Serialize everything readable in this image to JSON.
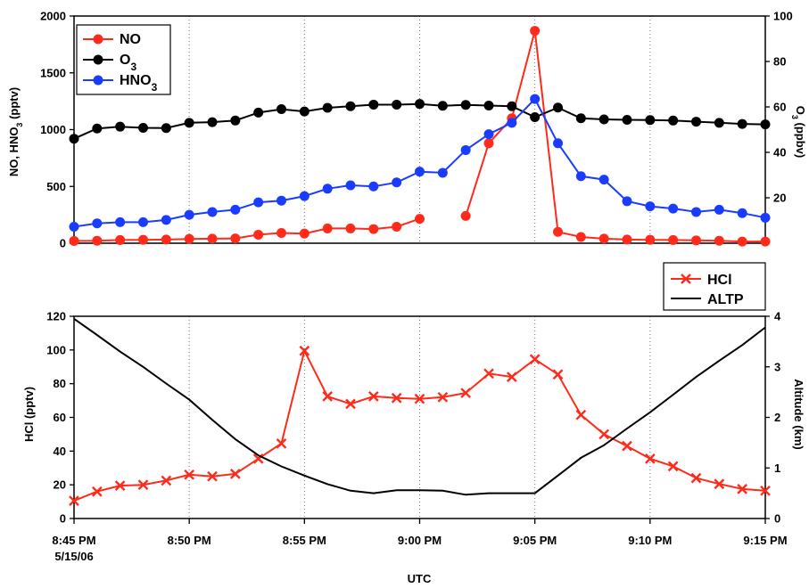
{
  "chart_data": [
    {
      "type": "line",
      "x": [
        "8:45 PM",
        "8:46 PM",
        "8:47 PM",
        "8:48 PM",
        "8:49 PM",
        "8:50 PM",
        "8:51 PM",
        "8:52 PM",
        "8:53 PM",
        "8:54 PM",
        "8:55 PM",
        "8:56 PM",
        "8:57 PM",
        "8:58 PM",
        "8:59 PM",
        "9:00 PM",
        "9:01 PM",
        "9:02 PM",
        "9:03 PM",
        "9:04 PM",
        "9:05 PM",
        "9:06 PM",
        "9:07 PM",
        "9:08 PM",
        "9:09 PM",
        "9:10 PM",
        "9:11 PM",
        "9:12 PM",
        "9:13 PM",
        "9:14 PM",
        "9:15 PM"
      ],
      "ylabel": "NO, HNO3 (pptv)",
      "y2label": "O3 (ppbv)",
      "ylim": [
        0,
        2000
      ],
      "y2lim": [
        0,
        100
      ],
      "yticks": [
        "0",
        "500",
        "1000",
        "1500",
        "2000"
      ],
      "y2ticks": [
        "20",
        "40",
        "60",
        "80",
        "100"
      ],
      "grid": "vertical dotted",
      "legend_position": "top-left",
      "series": [
        {
          "name": "NO",
          "axis": "left",
          "color": "#ff2a1a",
          "marker": "circle",
          "values": [
            20,
            22,
            28,
            30,
            32,
            38,
            40,
            42,
            75,
            90,
            85,
            130,
            130,
            125,
            145,
            215,
            null,
            240,
            880,
            1100,
            1870,
            100,
            55,
            40,
            32,
            30,
            28,
            25,
            22,
            15,
            15
          ]
        },
        {
          "name": "O3",
          "axis": "right",
          "color": "#000000",
          "marker": "circle",
          "values": [
            46,
            50.5,
            51.3,
            50.8,
            50.7,
            53,
            53.3,
            54,
            57.5,
            59,
            58,
            59.6,
            60.3,
            61,
            61,
            61.3,
            60.5,
            60.9,
            60.6,
            60.3,
            55.5,
            59.7,
            55,
            54.5,
            54.3,
            54.2,
            54,
            53.5,
            53,
            52.5,
            52.3
          ]
        },
        {
          "name": "HNO3",
          "axis": "left",
          "color": "#1a3cff",
          "marker": "circle",
          "values": [
            145,
            175,
            185,
            185,
            205,
            250,
            275,
            295,
            360,
            375,
            415,
            480,
            510,
            500,
            535,
            630,
            620,
            820,
            960,
            1060,
            1270,
            880,
            590,
            560,
            370,
            325,
            305,
            275,
            295,
            265,
            225
          ]
        }
      ]
    },
    {
      "type": "line",
      "x": [
        "8:45 PM",
        "8:46 PM",
        "8:47 PM",
        "8:48 PM",
        "8:49 PM",
        "8:50 PM",
        "8:51 PM",
        "8:52 PM",
        "8:53 PM",
        "8:54 PM",
        "8:55 PM",
        "8:56 PM",
        "8:57 PM",
        "8:58 PM",
        "8:59 PM",
        "9:00 PM",
        "9:01 PM",
        "9:02 PM",
        "9:03 PM",
        "9:04 PM",
        "9:05 PM",
        "9:06 PM",
        "9:07 PM",
        "9:08 PM",
        "9:09 PM",
        "9:10 PM",
        "9:11 PM",
        "9:12 PM",
        "9:13 PM",
        "9:14 PM",
        "9:15 PM"
      ],
      "xticks": [
        "8:45 PM",
        "8:50 PM",
        "8:55 PM",
        "9:00 PM",
        "9:05 PM",
        "9:10 PM",
        "9:15 PM"
      ],
      "xtick_sublabel": "5/15/06",
      "xlabel": "UTC",
      "ylabel": "HCl (pptv)",
      "y2label": "Altitude (km)",
      "ylim": [
        0,
        120
      ],
      "y2lim": [
        0,
        4
      ],
      "yticks": [
        "0",
        "20",
        "40",
        "60",
        "80",
        "100",
        "120"
      ],
      "y2ticks": [
        "0",
        "1",
        "2",
        "3",
        "4"
      ],
      "grid": "vertical dotted",
      "legend_position": "top-right",
      "series": [
        {
          "name": "HCl",
          "axis": "left",
          "color": "#ff2a1a",
          "marker": "x",
          "values": [
            10.5,
            16,
            19.5,
            20,
            22.5,
            26,
            25,
            26.5,
            35.5,
            44.5,
            99.5,
            72.5,
            68,
            72.5,
            71.5,
            71,
            72,
            74.5,
            86,
            84,
            94.5,
            85.5,
            61.5,
            50,
            43,
            35.5,
            31,
            24,
            20.5,
            17.5,
            16.5
          ]
        },
        {
          "name": "ALTP",
          "axis": "right",
          "color": "#000000",
          "marker": "none",
          "values": [
            3.95,
            3.63,
            3.3,
            3.0,
            2.67,
            2.35,
            1.95,
            1.57,
            1.25,
            1.03,
            0.85,
            0.68,
            0.55,
            0.5,
            0.56,
            0.56,
            0.55,
            0.47,
            0.5,
            0.5,
            0.5,
            0.85,
            1.2,
            1.45,
            1.78,
            2.1,
            2.45,
            2.8,
            3.12,
            3.43,
            3.78
          ]
        }
      ]
    }
  ]
}
